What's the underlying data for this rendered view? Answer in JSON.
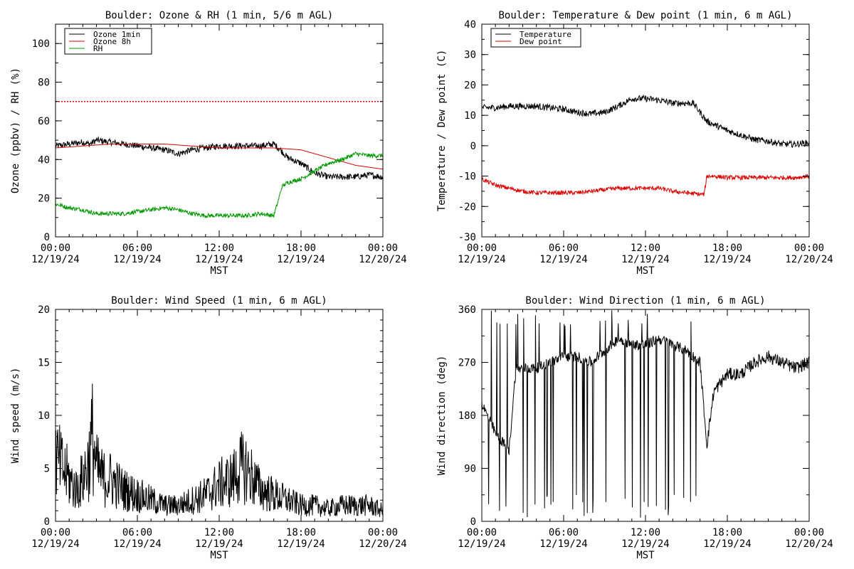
{
  "chart_data": [
    {
      "type": "line",
      "title": "Boulder: Ozone & RH (1 min, 5/6 m AGL)",
      "xlabel": "MST",
      "ylabel": "Ozone (ppbv) / RH (%)",
      "ylim": [
        0,
        110
      ],
      "yticks": [
        0,
        20,
        40,
        60,
        80,
        100
      ],
      "xlim": [
        0,
        24
      ],
      "xticks": [
        {
          "time": "00:00",
          "date": "12/19/24"
        },
        {
          "time": "06:00",
          "date": "12/19/24"
        },
        {
          "time": "12:00",
          "date": "12/19/24"
        },
        {
          "time": "18:00",
          "date": "12/19/24"
        },
        {
          "time": "00:00",
          "date": "12/20/24"
        }
      ],
      "legend_position": "top-left",
      "reference_lines": [
        {
          "y": 70,
          "style": "dotted",
          "color": "#dd0000"
        }
      ],
      "series": [
        {
          "name": "Ozone 1min",
          "color": "#000000",
          "noisy": true,
          "x": [
            0,
            1,
            2,
            2.5,
            3,
            4,
            5,
            6,
            7,
            8,
            9,
            10,
            11,
            12,
            13,
            14,
            15,
            16,
            16.5,
            17,
            18,
            19,
            20,
            21,
            22,
            23,
            24
          ],
          "y": [
            47,
            48,
            49,
            48,
            50,
            49,
            48,
            47,
            46,
            45,
            43,
            45,
            46,
            47,
            47,
            47,
            47,
            48,
            45,
            41,
            38,
            33,
            31,
            31,
            31,
            32,
            31
          ]
        },
        {
          "name": "Ozone 8h",
          "color": "#dd0000",
          "noisy": false,
          "x": [
            0,
            2,
            4,
            6,
            8,
            10,
            12,
            14,
            16,
            17,
            18,
            19,
            20,
            21,
            22,
            23,
            24
          ],
          "y": [
            46,
            47,
            48,
            48,
            48,
            47,
            46,
            46,
            46,
            45.5,
            45,
            43,
            41,
            39,
            37,
            36,
            35
          ]
        },
        {
          "name": "RH",
          "color": "#009900",
          "noisy": true,
          "x": [
            0,
            1,
            2,
            3,
            4,
            5,
            6,
            7,
            8,
            9,
            10,
            11,
            12,
            13,
            14,
            15,
            16,
            16.3,
            16.6,
            17,
            18,
            19,
            20,
            21,
            22,
            23,
            24
          ],
          "y": [
            17,
            15,
            14,
            12,
            12,
            12,
            13,
            14,
            15,
            14,
            12,
            11,
            11,
            11,
            11,
            12,
            11,
            18,
            26,
            28,
            30,
            34,
            38,
            40,
            43,
            42,
            42
          ]
        }
      ]
    },
    {
      "type": "line",
      "title": "Boulder: Temperature & Dew point (1 min, 6 m AGL)",
      "xlabel": "MST",
      "ylabel": "Temperature / Dew point (C)",
      "ylim": [
        -30,
        40
      ],
      "yticks": [
        -30,
        -20,
        -10,
        0,
        10,
        20,
        30,
        40
      ],
      "xlim": [
        0,
        24
      ],
      "xticks": [
        {
          "time": "00:00",
          "date": "12/19/24"
        },
        {
          "time": "06:00",
          "date": "12/19/24"
        },
        {
          "time": "12:00",
          "date": "12/19/24"
        },
        {
          "time": "18:00",
          "date": "12/19/24"
        },
        {
          "time": "00:00",
          "date": "12/20/24"
        }
      ],
      "legend_position": "top-left",
      "series": [
        {
          "name": "Temperature",
          "color": "#000000",
          "noisy": true,
          "x": [
            0,
            1,
            2,
            3,
            4,
            5,
            6,
            7,
            8,
            9,
            10,
            11,
            12,
            13,
            14,
            15,
            15.5,
            16,
            16.5,
            17,
            18,
            19,
            20,
            21,
            22,
            23,
            24
          ],
          "y": [
            12.5,
            12.5,
            13,
            13,
            13,
            12.5,
            12,
            11,
            10.5,
            11,
            13,
            15.5,
            15.5,
            15,
            14,
            14,
            14,
            11,
            8,
            7,
            5,
            3.5,
            2,
            1.5,
            0.5,
            0.5,
            1
          ]
        },
        {
          "name": "Dew point",
          "color": "#dd0000",
          "noisy": true,
          "x": [
            0,
            0.5,
            1,
            2,
            3,
            4,
            5,
            6,
            7,
            8,
            9,
            10,
            11,
            12,
            13,
            14,
            15,
            16,
            16.3,
            16.5,
            17,
            18,
            19,
            20,
            21,
            22,
            23,
            24
          ],
          "y": [
            -11,
            -12,
            -13,
            -14,
            -15,
            -15.5,
            -15.5,
            -15.5,
            -15.5,
            -15,
            -14.5,
            -14,
            -14,
            -14,
            -14,
            -15,
            -15.5,
            -16,
            -16,
            -10,
            -10,
            -10.5,
            -10.5,
            -10.5,
            -10.5,
            -10.5,
            -10.5,
            -10
          ]
        }
      ]
    },
    {
      "type": "line",
      "title": "Boulder: Wind Speed (1 min, 6 m AGL)",
      "xlabel": "MST",
      "ylabel": "Wind speed (m/s)",
      "ylim": [
        0,
        20
      ],
      "yticks": [
        0,
        5,
        10,
        15,
        20
      ],
      "xlim": [
        0,
        24
      ],
      "xticks": [
        {
          "time": "00:00",
          "date": "12/19/24"
        },
        {
          "time": "06:00",
          "date": "12/19/24"
        },
        {
          "time": "12:00",
          "date": "12/19/24"
        },
        {
          "time": "18:00",
          "date": "12/19/24"
        },
        {
          "time": "00:00",
          "date": "12/20/24"
        }
      ],
      "series": [
        {
          "color": "#000000",
          "noisy": true,
          "x": [
            0,
            0.5,
            1,
            1.5,
            2,
            2.5,
            2.7,
            3,
            3.5,
            4,
            5,
            6,
            7,
            8,
            9,
            10,
            11,
            12,
            13,
            13.5,
            14,
            15,
            16,
            17,
            18,
            19,
            20,
            21,
            22,
            23,
            24
          ],
          "y": [
            6,
            5,
            4,
            3,
            4,
            6,
            8,
            5,
            4,
            4,
            3,
            2.5,
            2,
            1.5,
            1.5,
            2,
            2.5,
            3.5,
            4,
            5,
            5,
            3,
            2.5,
            2,
            1.5,
            1.5,
            1.2,
            1.5,
            1.5,
            1.5,
            1
          ]
        }
      ]
    },
    {
      "type": "line",
      "title": "Boulder: Wind Direction (1 min, 6 m AGL)",
      "xlabel": "MST",
      "ylabel": "Wind direction (deg)",
      "ylim": [
        0,
        360
      ],
      "yticks": [
        0,
        90,
        180,
        270,
        360
      ],
      "xlim": [
        0,
        24
      ],
      "xticks": [
        {
          "time": "00:00",
          "date": "12/19/24"
        },
        {
          "time": "06:00",
          "date": "12/19/24"
        },
        {
          "time": "12:00",
          "date": "12/19/24"
        },
        {
          "time": "18:00",
          "date": "12/19/24"
        },
        {
          "time": "00:00",
          "date": "12/20/24"
        }
      ],
      "series": [
        {
          "color": "#000000",
          "noisy": true,
          "x": [
            0,
            1,
            2,
            2.5,
            3,
            4,
            5,
            6,
            7,
            8,
            9,
            10,
            11,
            12,
            13,
            14,
            15,
            16,
            16.5,
            17,
            18,
            19,
            20,
            21,
            22,
            23,
            24
          ],
          "y": [
            200,
            150,
            120,
            260,
            260,
            260,
            270,
            280,
            280,
            270,
            290,
            310,
            300,
            300,
            310,
            300,
            290,
            270,
            130,
            220,
            250,
            250,
            270,
            280,
            270,
            260,
            270
          ]
        }
      ]
    }
  ]
}
